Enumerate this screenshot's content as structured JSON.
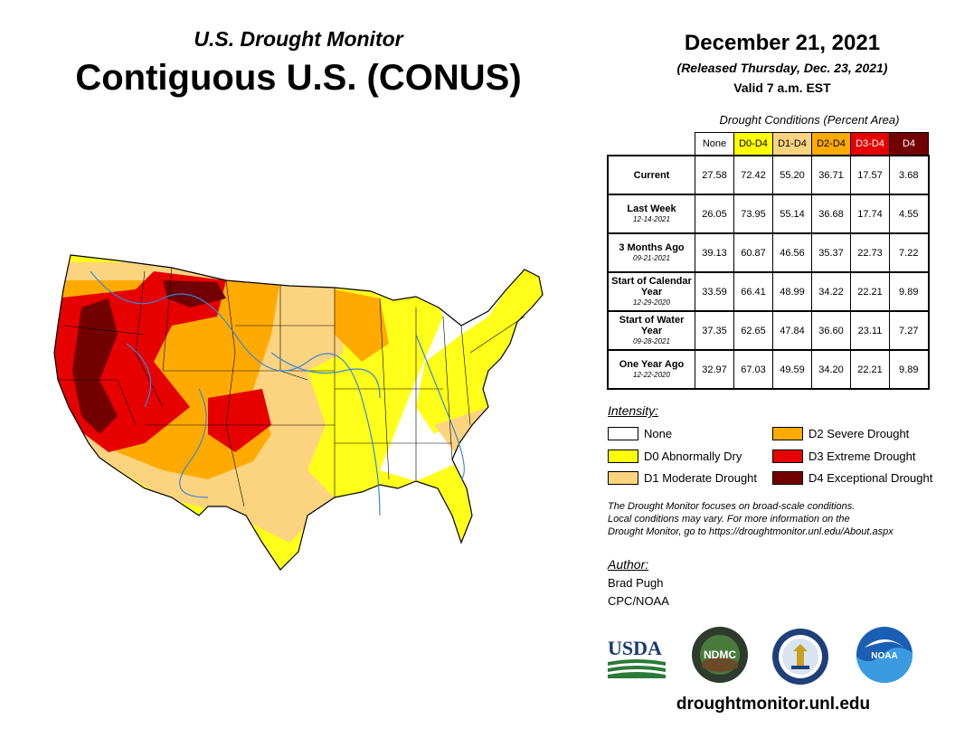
{
  "header": {
    "subtitle": "U.S. Drought Monitor",
    "title": "Contiguous U.S. (CONUS)",
    "date": "December 21, 2021",
    "released": "(Released Thursday, Dec. 23, 2021)",
    "valid": "Valid 7 a.m. EST"
  },
  "table": {
    "caption": "Drought Conditions (Percent Area)",
    "columns": [
      {
        "label": "None",
        "color": "#ffffff",
        "text_color": "#000000"
      },
      {
        "label": "D0-D4",
        "color": "#ffff00",
        "text_color": "#000000"
      },
      {
        "label": "D1-D4",
        "color": "#fcd37f",
        "text_color": "#000000"
      },
      {
        "label": "D2-D4",
        "color": "#ffaa00",
        "text_color": "#000000"
      },
      {
        "label": "D3-D4",
        "color": "#e60000",
        "text_color": "#ffffff"
      },
      {
        "label": "D4",
        "color": "#730000",
        "text_color": "#ffffff"
      }
    ],
    "rows": [
      {
        "label": "Current",
        "date": "",
        "values": [
          "27.58",
          "72.42",
          "55.20",
          "36.71",
          "17.57",
          "3.68"
        ]
      },
      {
        "label": "Last Week",
        "date": "12-14-2021",
        "values": [
          "26.05",
          "73.95",
          "55.14",
          "36.68",
          "17.74",
          "4.55"
        ]
      },
      {
        "label": "3 Months Ago",
        "date": "09-21-2021",
        "values": [
          "39.13",
          "60.87",
          "46.56",
          "35.37",
          "22.73",
          "7.22"
        ]
      },
      {
        "label": "Start of Calendar Year",
        "date": "12-29-2020",
        "values": [
          "33.59",
          "66.41",
          "48.99",
          "34.22",
          "22.21",
          "9.89"
        ]
      },
      {
        "label": "Start of Water Year",
        "date": "09-28-2021",
        "values": [
          "37.35",
          "62.65",
          "47.84",
          "36.60",
          "23.11",
          "7.27"
        ]
      },
      {
        "label": "One Year Ago",
        "date": "12-22-2020",
        "values": [
          "32.97",
          "67.03",
          "49.59",
          "34.20",
          "22.21",
          "9.89"
        ]
      }
    ]
  },
  "legend": {
    "title": "Intensity:",
    "items": [
      {
        "label": "None",
        "color": "#ffffff"
      },
      {
        "label": "D0 Abnormally Dry",
        "color": "#ffff00"
      },
      {
        "label": "D1 Moderate Drought",
        "color": "#fcd37f"
      },
      {
        "label": "D2 Severe Drought",
        "color": "#ffaa00"
      },
      {
        "label": "D3 Extreme Drought",
        "color": "#e60000"
      },
      {
        "label": "D4 Exceptional Drought",
        "color": "#730000"
      }
    ]
  },
  "note": {
    "line1": "The Drought Monitor focuses on broad-scale conditions.",
    "line2": "Local conditions may vary. For more information on the",
    "line3": "Drought Monitor, go to https://droughtmonitor.unl.edu/About.aspx"
  },
  "author": {
    "label": "Author:",
    "name": "Brad Pugh",
    "org": "CPC/NOAA"
  },
  "logos": {
    "usda": "USDA",
    "ndmc": "NDMC",
    "noaa": "NOAA"
  },
  "website": "droughtmonitor.unl.edu"
}
